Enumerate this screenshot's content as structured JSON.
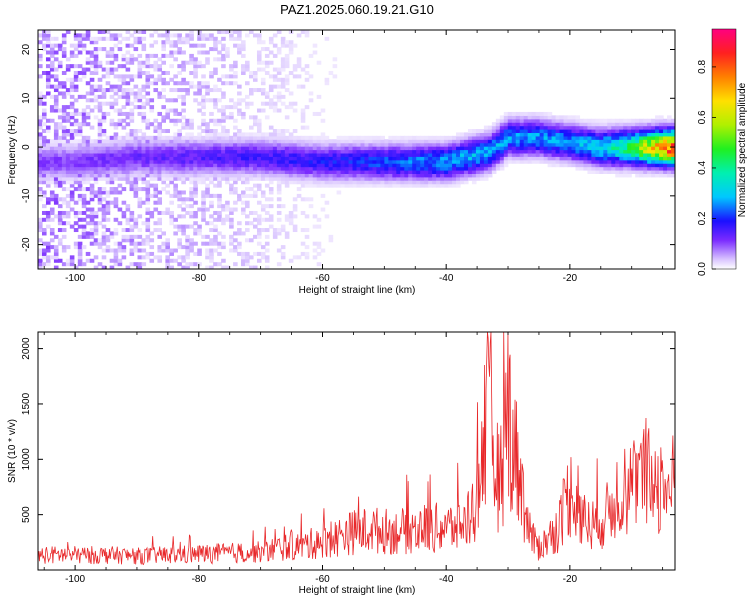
{
  "title": "PAZ1.2025.060.19.21.G10",
  "colors": {
    "snr_line": "#e8282a",
    "spec_low": "#e9dcff",
    "spec_mid": "#3a10ff",
    "spec_high": "#ff2020"
  },
  "chart_data": [
    {
      "type": "heatmap",
      "xlabel": "Height of straight line (km)",
      "ylabel": "Frequency (Hz)",
      "xlim": [
        -106,
        -3
      ],
      "ylim": [
        -25,
        24
      ],
      "x_ticks": [
        -100,
        -80,
        -60,
        -40,
        -20
      ],
      "x_tick_labels": [
        "-100",
        "-80",
        "-60",
        "-40",
        "-20"
      ],
      "y_ticks": [
        -20,
        -10,
        0,
        10,
        20
      ],
      "y_tick_labels": [
        "-20",
        "-10",
        "0",
        "10",
        "20"
      ],
      "colorbar": {
        "label": "Normalized spectral amplitude",
        "range": [
          0,
          0.95
        ],
        "ticks": [
          0.0,
          0.2,
          0.4,
          0.6,
          0.8
        ],
        "tick_labels": [
          "0.0",
          "0.2",
          "0.4",
          "0.6",
          "0.8"
        ],
        "colormap": "rainbow (white → violet → blue → cyan → green → yellow → orange → red → magenta)"
      },
      "ridge": [
        {
          "height_km": -100,
          "frequency_hz": -3,
          "amplitude": 0.12
        },
        {
          "height_km": -90,
          "frequency_hz": -2,
          "amplitude": 0.14
        },
        {
          "height_km": -80,
          "frequency_hz": -2,
          "amplitude": 0.16
        },
        {
          "height_km": -70,
          "frequency_hz": -2,
          "amplitude": 0.18
        },
        {
          "height_km": -60,
          "frequency_hz": -3,
          "amplitude": 0.2
        },
        {
          "height_km": -50,
          "frequency_hz": -3,
          "amplitude": 0.24
        },
        {
          "height_km": -40,
          "frequency_hz": -3,
          "amplitude": 0.3
        },
        {
          "height_km": -33,
          "frequency_hz": -1,
          "amplitude": 0.32
        },
        {
          "height_km": -30,
          "frequency_hz": 2,
          "amplitude": 0.3
        },
        {
          "height_km": -25,
          "frequency_hz": 2,
          "amplitude": 0.3
        },
        {
          "height_km": -20,
          "frequency_hz": 1,
          "amplitude": 0.3
        },
        {
          "height_km": -15,
          "frequency_hz": 0,
          "amplitude": 0.35
        },
        {
          "height_km": -10,
          "frequency_hz": 0,
          "amplitude": 0.5
        },
        {
          "height_km": -6,
          "frequency_hz": 0,
          "amplitude": 0.8
        },
        {
          "height_km": -3,
          "frequency_hz": 0,
          "amplitude": 0.95
        }
      ]
    },
    {
      "type": "line",
      "xlabel": "Height of straight line (km)",
      "ylabel": "SNR (10 * v/v)",
      "xlim": [
        -106,
        -3
      ],
      "ylim": [
        0,
        2150
      ],
      "x_ticks": [
        -100,
        -80,
        -60,
        -40,
        -20
      ],
      "x_tick_labels": [
        "-100",
        "-80",
        "-60",
        "-40",
        "-20"
      ],
      "y_ticks": [
        500,
        1000,
        1500,
        2000
      ],
      "y_tick_labels": [
        "500",
        "1000",
        "1500",
        "2000"
      ],
      "series": [
        {
          "x": [
            -106,
            -100,
            -95,
            -90,
            -85,
            -80,
            -75,
            -70,
            -66,
            -62,
            -58,
            -55,
            -52,
            -48,
            -44,
            -40,
            -37,
            -35,
            -34,
            -33,
            -32,
            -31,
            -30,
            -29,
            -28,
            -27,
            -26,
            -25,
            -24,
            -22,
            -20,
            -18,
            -16,
            -14,
            -12,
            -10,
            -8,
            -6,
            -4,
            -3
          ],
          "y": [
            150,
            150,
            150,
            140,
            150,
            160,
            170,
            180,
            230,
            260,
            320,
            380,
            400,
            380,
            420,
            420,
            460,
            700,
            1300,
            1500,
            1000,
            900,
            1700,
            1200,
            900,
            500,
            300,
            220,
            280,
            420,
            800,
            500,
            450,
            550,
            800,
            850,
            900,
            880,
            800,
            900
          ]
        }
      ]
    }
  ]
}
